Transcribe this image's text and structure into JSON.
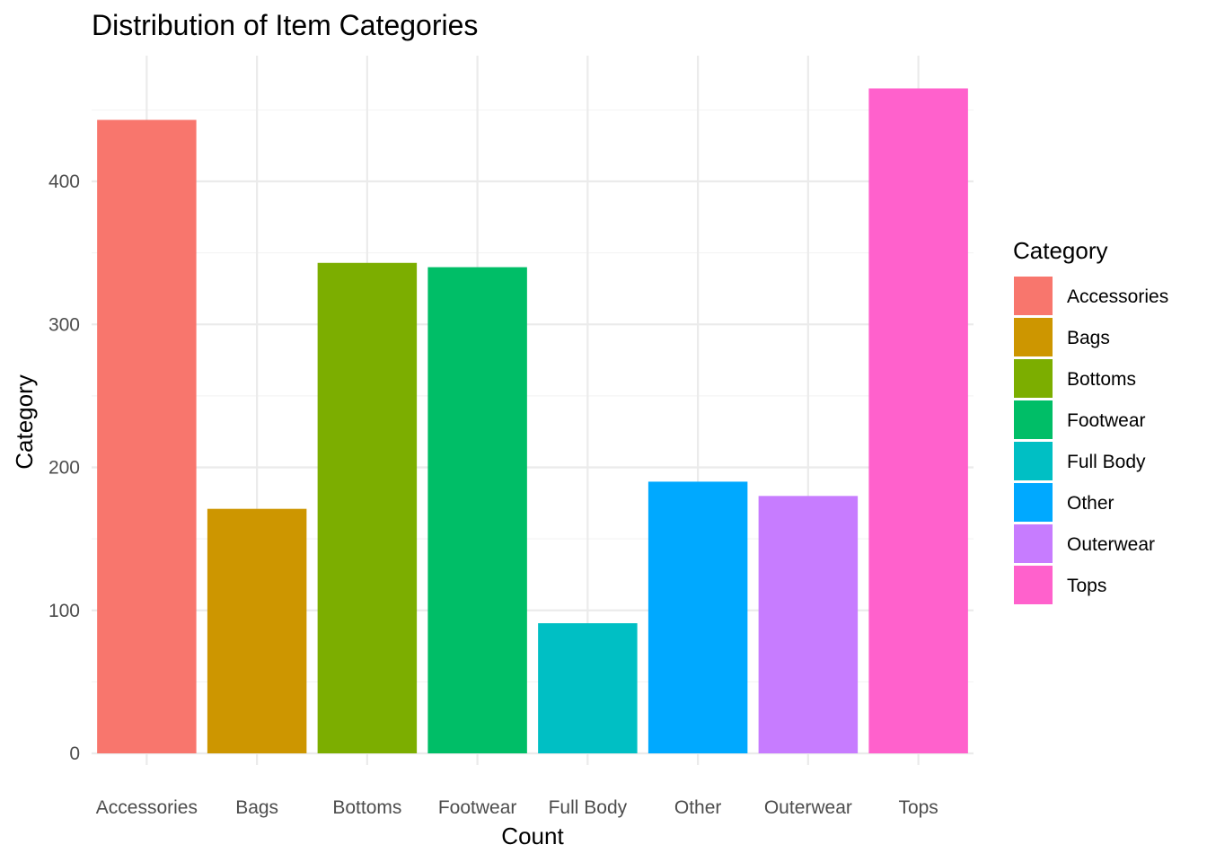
{
  "chart_data": {
    "type": "bar",
    "title": "Distribution of Item Categories",
    "xlabel": "Count",
    "ylabel": "Category",
    "categories": [
      "Accessories",
      "Bags",
      "Bottoms",
      "Footwear",
      "Full Body",
      "Other",
      "Outerwear",
      "Tops"
    ],
    "values": [
      443,
      171,
      343,
      340,
      91,
      190,
      180,
      465
    ],
    "colors": [
      "#F8766D",
      "#CD9600",
      "#7CAE00",
      "#00BE67",
      "#00BFC4",
      "#00A9FF",
      "#C77CFF",
      "#FF61CC"
    ],
    "yticks": [
      0,
      100,
      200,
      300,
      400
    ],
    "ylim": [
      0,
      488
    ],
    "grid": true,
    "legend": {
      "title": "Category",
      "position": "right",
      "entries": [
        "Accessories",
        "Bags",
        "Bottoms",
        "Footwear",
        "Full Body",
        "Other",
        "Outerwear",
        "Tops"
      ]
    }
  }
}
